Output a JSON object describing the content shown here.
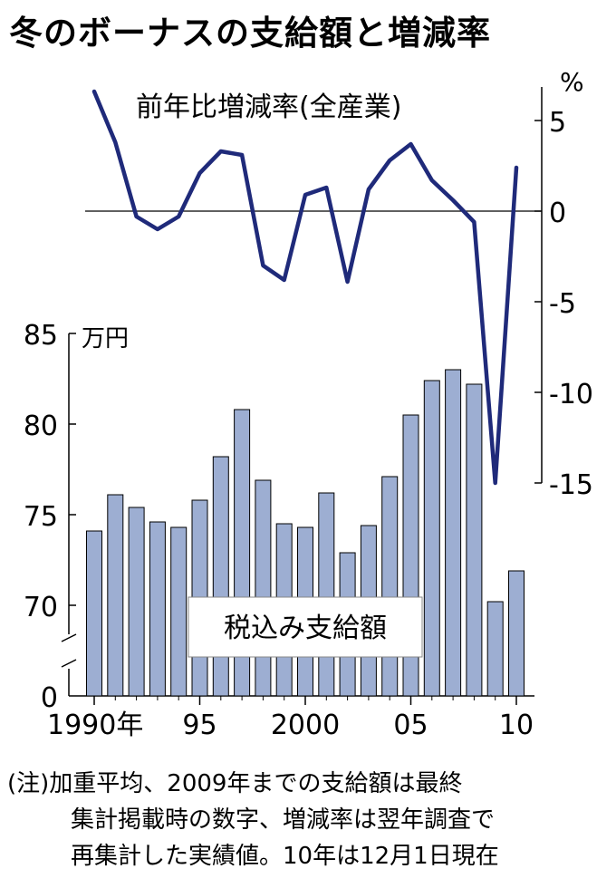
{
  "title": "冬のボーナスの支給額と増減率",
  "chart_data": [
    {
      "type": "line",
      "label": "前年比増減率(全産業)",
      "unit": "%",
      "x": [
        1990,
        1991,
        1992,
        1993,
        1994,
        1995,
        1996,
        1997,
        1998,
        1999,
        2000,
        2001,
        2002,
        2003,
        2004,
        2005,
        2006,
        2007,
        2008,
        2009,
        2010
      ],
      "values": [
        6.6,
        3.8,
        -0.3,
        -1.0,
        -0.3,
        2.1,
        3.3,
        3.1,
        -3.0,
        -3.8,
        0.9,
        1.3,
        -3.9,
        1.2,
        2.8,
        3.7,
        1.7,
        0.6,
        -0.6,
        -15.0,
        2.4
      ],
      "ylim": [
        -15,
        5
      ],
      "yticks": [
        "5",
        "0",
        "-5",
        "-10",
        "-15"
      ],
      "zero_line": true
    },
    {
      "type": "bar",
      "label": "税込み支給額",
      "unit": "万円",
      "x": [
        1990,
        1991,
        1992,
        1993,
        1994,
        1995,
        1996,
        1997,
        1998,
        1999,
        2000,
        2001,
        2002,
        2003,
        2004,
        2005,
        2006,
        2007,
        2008,
        2009,
        2010
      ],
      "values": [
        74.1,
        76.1,
        75.4,
        74.6,
        74.3,
        75.8,
        78.2,
        80.8,
        76.9,
        74.5,
        74.3,
        76.2,
        72.9,
        74.4,
        77.1,
        80.5,
        82.4,
        83.0,
        82.2,
        70.2,
        71.9
      ],
      "ylim": [
        0,
        85
      ],
      "axis_break": true,
      "yticks": [
        "85",
        "80",
        "75",
        "70",
        "0"
      ],
      "xticks": [
        "1990年",
        "95",
        "2000",
        "05",
        "10"
      ],
      "color": "#9daed2"
    }
  ],
  "note_lines": [
    "(注)加重平均、2009年までの支給額は最終",
    "集計掲載時の数字、増減率は翌年調査で",
    "再集計した実績値。10年は12月1日現在"
  ]
}
